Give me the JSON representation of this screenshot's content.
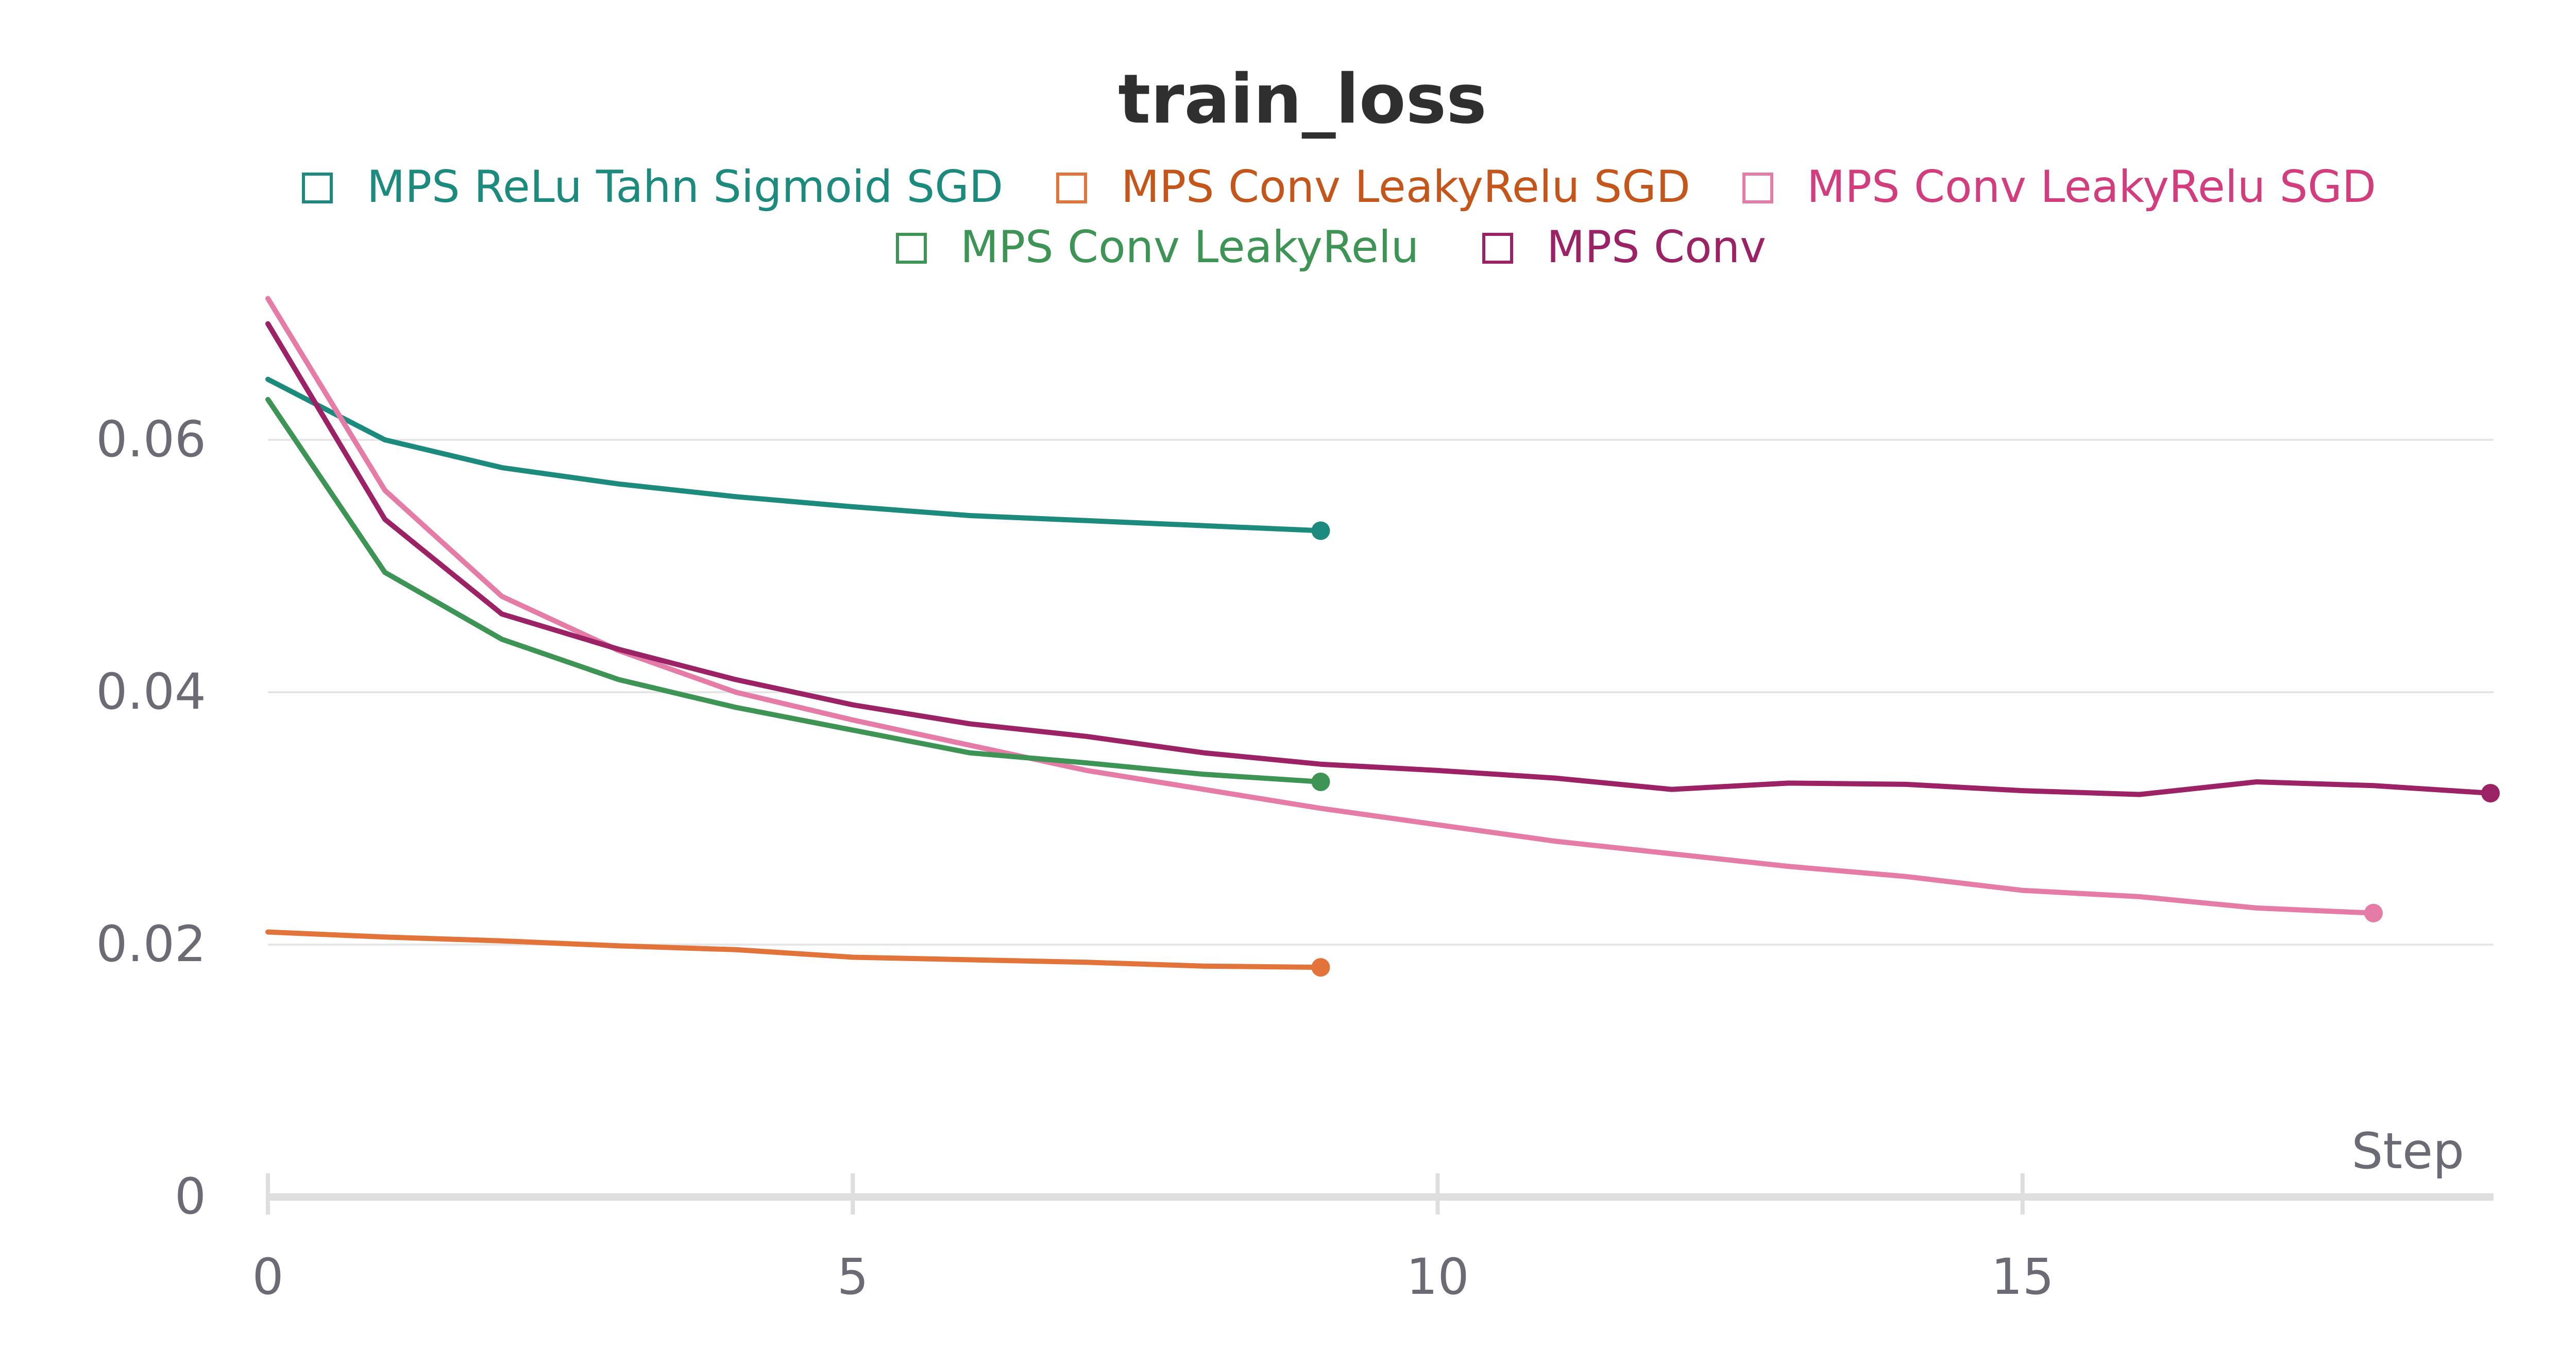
{
  "chart_data": {
    "type": "line",
    "title": "train_loss",
    "xlabel": "Step",
    "ylabel": "",
    "xlim": [
      0,
      19
    ],
    "ylim": [
      0,
      0.072
    ],
    "x_ticks": [
      0,
      5,
      10,
      15
    ],
    "x_tick_labels": [
      "0",
      "5",
      "10",
      "15"
    ],
    "y_ticks": [
      0,
      0.02,
      0.04,
      0.06
    ],
    "y_tick_labels": [
      "0",
      "0.02",
      "0.04",
      "0.06"
    ],
    "grid": true,
    "legend_position": "top-center",
    "series": [
      {
        "name": "MPS ReLu Tahn Sigmoid SGD",
        "color": "#1d8a7e",
        "x": [
          0,
          1,
          2,
          3,
          4,
          5,
          6,
          7,
          8,
          9
        ],
        "values": [
          0.0648,
          0.06,
          0.0578,
          0.0565,
          0.0555,
          0.0547,
          0.054,
          0.0536,
          0.0532,
          0.0528
        ]
      },
      {
        "name": "MPS Conv LeakyRelu SGD",
        "color": "#e2733a",
        "x": [
          0,
          1,
          2,
          3,
          4,
          5,
          6,
          7,
          8,
          9
        ],
        "values": [
          0.021,
          0.0206,
          0.0203,
          0.0199,
          0.0196,
          0.019,
          0.0188,
          0.0186,
          0.0183,
          0.0182
        ]
      },
      {
        "name": "MPS Conv LeakyRelu SGD",
        "color": "#e57ca7",
        "x": [
          0,
          1,
          2,
          3,
          4,
          5,
          6,
          7,
          8,
          9,
          10,
          11,
          12,
          13,
          14,
          15,
          16,
          17,
          18
        ],
        "values": [
          0.0712,
          0.056,
          0.0476,
          0.0433,
          0.04,
          0.0378,
          0.0358,
          0.0338,
          0.0323,
          0.0308,
          0.0295,
          0.0282,
          0.0272,
          0.0262,
          0.0254,
          0.0243,
          0.0238,
          0.0229,
          0.0225
        ]
      },
      {
        "name": "MPS Conv LeakyRelu",
        "color": "#3d9455",
        "x": [
          0,
          1,
          2,
          3,
          4,
          5,
          6,
          7,
          8,
          9
        ],
        "values": [
          0.0632,
          0.0495,
          0.0442,
          0.041,
          0.0388,
          0.037,
          0.0352,
          0.0344,
          0.0335,
          0.0329
        ]
      },
      {
        "name": "MPS Conv",
        "color": "#9b2265",
        "x": [
          0,
          1,
          2,
          3,
          4,
          5,
          6,
          7,
          8,
          9,
          10,
          11,
          12,
          13,
          14,
          15,
          16,
          17,
          18,
          19
        ],
        "values": [
          0.0692,
          0.0537,
          0.0462,
          0.0434,
          0.041,
          0.039,
          0.0375,
          0.0365,
          0.0352,
          0.0343,
          0.0338,
          0.0332,
          0.0323,
          0.0328,
          0.0327,
          0.0322,
          0.0319,
          0.0329,
          0.0326,
          0.032
        ]
      }
    ]
  },
  "legend": {
    "row1": [
      {
        "label": "MPS ReLu Tahn Sigmoid SGD",
        "color": "#1d8a7e",
        "text_color": "#1d8a7e"
      },
      {
        "label": "MPS Conv LeakyRelu SGD",
        "color": "#e2733a",
        "text_color": "#c4561c"
      },
      {
        "label": "MPS Conv LeakyRelu SGD",
        "color": "#e57ca7",
        "text_color": "#d23d7d"
      }
    ],
    "row2": [
      {
        "label": "MPS Conv LeakyRelu",
        "color": "#3d9455",
        "text_color": "#3d9455"
      },
      {
        "label": "MPS Conv",
        "color": "#9b2265",
        "text_color": "#9b2265"
      }
    ]
  }
}
